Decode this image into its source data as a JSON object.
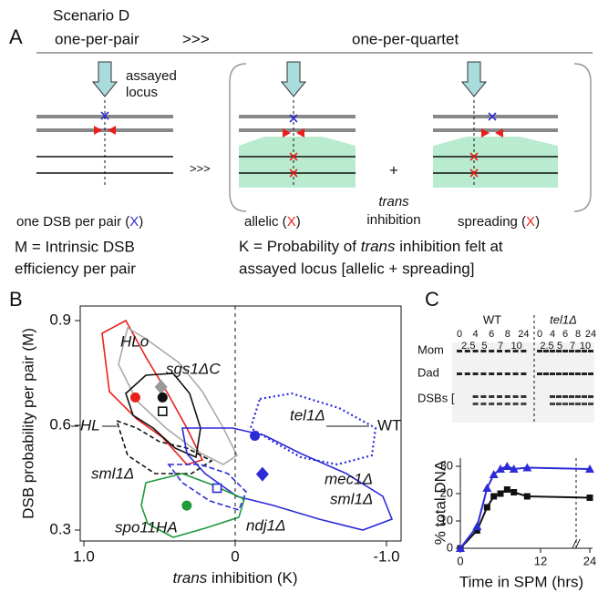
{
  "panel_a": {
    "letter": "A",
    "scenario": "Scenario D",
    "left_heading": "one-per-pair",
    "heading_sep": ">>>",
    "right_heading": "one-per-quartet",
    "locus_label": [
      "assayed",
      "locus"
    ],
    "mid_sep": ">>>",
    "plus": "+",
    "trans_label": [
      "trans",
      "inhibition"
    ],
    "left_caption": [
      "one DSB per pair (",
      "X",
      ")"
    ],
    "allelic_caption": [
      "allelic (",
      "X",
      ")"
    ],
    "spreading_caption": [
      "spreading (",
      "X",
      ")"
    ],
    "m_definition": [
      "M = Intrinsic DSB",
      "efficiency per pair"
    ],
    "k_definition": [
      "K = Probability of ",
      "trans",
      " inhibition felt at",
      "assayed locus [allelic + spreading]"
    ]
  },
  "panel_b": {
    "letter": "B",
    "type": "scatter",
    "x_label": [
      "trans",
      " inhibition (K)"
    ],
    "y_label": "DSB probability per pair (M)",
    "xlim": [
      1.0,
      -1.0
    ],
    "ylim": [
      0.3,
      0.9
    ],
    "xticks": [
      {
        "value": 1.0,
        "label": "1.0"
      },
      0,
      {
        "value": -1.0,
        "label": "-1.0"
      }
    ],
    "yticks": [
      0.3,
      0.6,
      0.9
    ],
    "ref_labels": [
      "HL",
      "WT"
    ],
    "labels": [
      "HLo",
      "sgs1ΔC",
      "tel1Δ",
      "sml1Δ",
      "mec1Δ",
      "sml1Δ",
      "ndj1Δ",
      "spo11HA"
    ],
    "points": [
      {
        "color": "#e8201c",
        "marker": "circle",
        "x": 0.66,
        "y": 0.68
      },
      {
        "color": "#999999",
        "marker": "diamond",
        "x": 0.49,
        "y": 0.71
      },
      {
        "color": "#111111",
        "marker": "circle",
        "x": 0.48,
        "y": 0.68
      },
      {
        "color": "#111111",
        "marker": "square",
        "x": 0.48,
        "y": 0.64
      },
      {
        "color": "#2b2bd8",
        "marker": "circle",
        "x": -0.13,
        "y": 0.57
      },
      {
        "color": "#2b2bd8",
        "marker": "diamond",
        "x": -0.18,
        "y": 0.46
      },
      {
        "color": "#2b2bd8",
        "marker": "square",
        "x": 0.12,
        "y": 0.42
      },
      {
        "color": "#1f9a3c",
        "marker": "circle",
        "x": 0.32,
        "y": 0.37
      }
    ]
  },
  "panel_c": {
    "letter": "C",
    "gel": {
      "groups": [
        "WT",
        "tel1Δ"
      ],
      "times_row1": [
        "0",
        "4",
        "6",
        "8",
        "24"
      ],
      "times_row2": [
        "2.5",
        "5",
        "7",
        "10"
      ],
      "bands": [
        "Mom",
        "Dad",
        "DSBs ["
      ]
    },
    "chart": {
      "type": "line",
      "x_label": "Time in SPM (hrs)",
      "y_label": "% total DNA",
      "x": [
        0,
        2.5,
        4,
        5,
        6,
        7,
        8,
        10,
        24
      ],
      "xlim": [
        0,
        24
      ],
      "xticks": [
        0,
        12,
        24
      ],
      "ylim": [
        0,
        33
      ],
      "yticks": [
        0,
        10,
        20,
        30
      ],
      "series": [
        {
          "color": "#111111",
          "marker": "square",
          "values": [
            0,
            6.5,
            15,
            19,
            20,
            21.5,
            20.5,
            19,
            18.5
          ]
        },
        {
          "color": "#2b2bd8",
          "marker": "triangle",
          "values": [
            0,
            8,
            22,
            27,
            29,
            30,
            29,
            29.5,
            29
          ]
        }
      ]
    }
  }
}
